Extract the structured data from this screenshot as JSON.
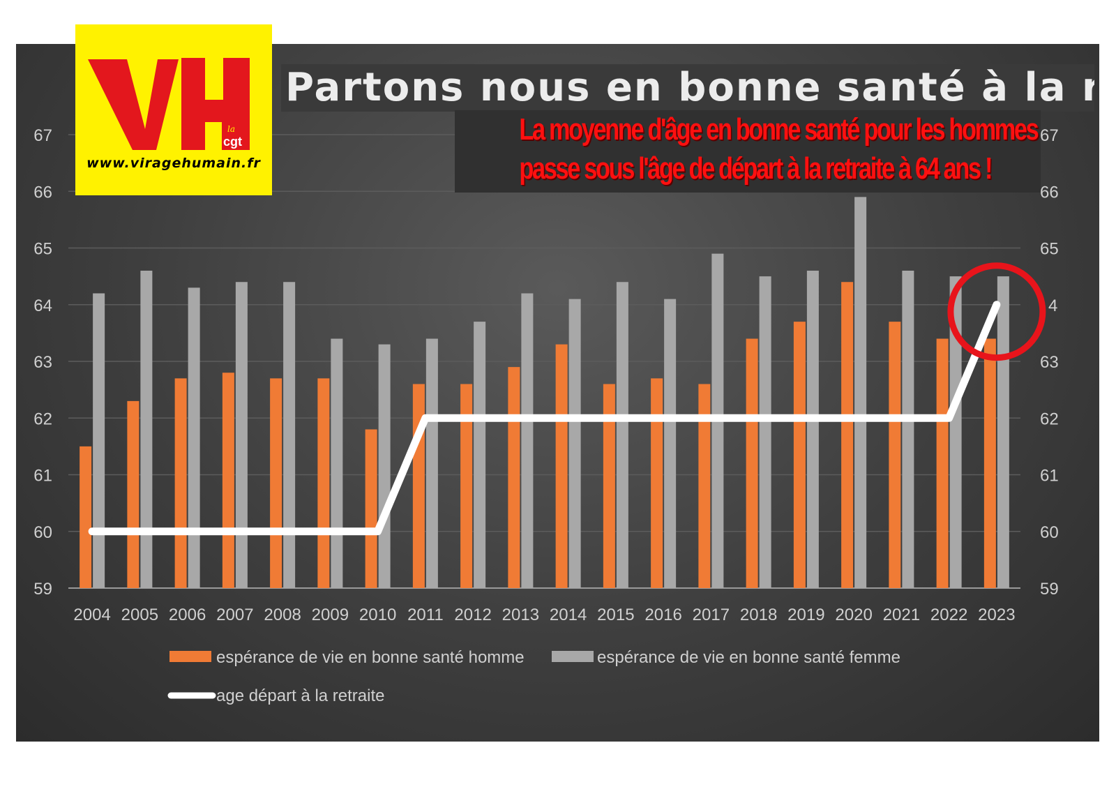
{
  "logo": {
    "letters": "VH",
    "brand_small_1": "la",
    "brand_small_2": "cgt",
    "url": "www.viragehumain.fr",
    "colors": {
      "background": "#fff200",
      "letters": "#e3171d",
      "cgt": "#e3171d"
    }
  },
  "title": "Partons nous en bonne santé à la retraite ?",
  "subtitle_lines": [
    "La moyenne d'âge en bonne santé pour les hommes",
    "passe sous l'âge de départ à la retraite à 64 ans  !"
  ],
  "chart_data": {
    "type": "bar",
    "categories": [
      "2004",
      "2005",
      "2006",
      "2007",
      "2008",
      "2009",
      "2010",
      "2011",
      "2012",
      "2013",
      "2014",
      "2015",
      "2016",
      "2017",
      "2018",
      "2019",
      "2020",
      "2021",
      "2022",
      "2023"
    ],
    "series": [
      {
        "name": "espérance de vie en bonne santé homme",
        "type": "bar",
        "color": "#f07b35",
        "values": [
          61.5,
          62.3,
          62.7,
          62.8,
          62.7,
          62.7,
          61.8,
          62.6,
          62.6,
          62.9,
          63.3,
          62.6,
          62.7,
          62.6,
          63.4,
          63.7,
          64.4,
          63.7,
          63.4,
          63.4
        ]
      },
      {
        "name": "espérance de vie en bonne santé femme",
        "type": "bar",
        "color": "#a8a8a8",
        "values": [
          64.2,
          64.6,
          64.3,
          64.4,
          64.4,
          63.4,
          63.3,
          63.4,
          63.7,
          64.2,
          64.1,
          64.4,
          64.1,
          64.9,
          64.5,
          64.6,
          65.9,
          64.6,
          64.5,
          64.5
        ]
      },
      {
        "name": "age départ à la retraite",
        "type": "line",
        "color": "#ffffff",
        "values": [
          60,
          60,
          60,
          60,
          60,
          60,
          60,
          62,
          62,
          62,
          62,
          62,
          62,
          62,
          62,
          62,
          62,
          62,
          62,
          64
        ]
      }
    ],
    "y_ticks": [
      "59",
      "60",
      "61",
      "62",
      "63",
      "64",
      "65",
      "66",
      "67"
    ],
    "y_ticks_right": [
      "59",
      "60",
      "61",
      "62",
      "63",
      "",
      "65",
      "66",
      "67"
    ],
    "right_tick_partial": "4",
    "ylim": [
      59,
      67
    ],
    "grid": true,
    "legend_position": "bottom",
    "annotation": {
      "type": "circle",
      "target_category": "2023",
      "value": 64,
      "color": "#e8141b"
    }
  }
}
